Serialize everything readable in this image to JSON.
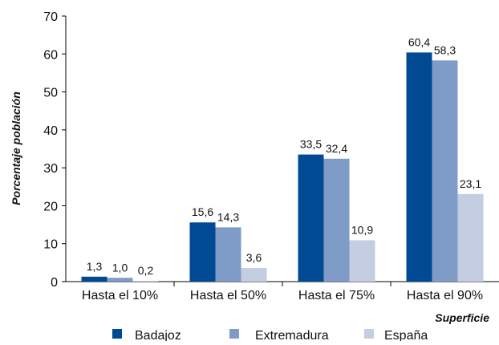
{
  "chart_data": {
    "type": "bar",
    "title": "",
    "xlabel": "Superficie",
    "ylabel": "Porcentaje población",
    "ylim": [
      0,
      70
    ],
    "yticks": [
      0,
      10,
      20,
      30,
      40,
      50,
      60,
      70
    ],
    "grid": false,
    "legend_position": "bottom",
    "categories": [
      "Hasta el 10%",
      "Hasta el 50%",
      "Hasta el 75%",
      "Hasta el 90%"
    ],
    "series": [
      {
        "name": "Badajoz",
        "color": "#004A93",
        "values": [
          1.3,
          15.6,
          33.5,
          60.4
        ],
        "labels": [
          "1,3",
          "15,6",
          "33,5",
          "60,4"
        ]
      },
      {
        "name": "Extremadura",
        "color": "#7F9BC8",
        "values": [
          1.0,
          14.3,
          32.4,
          58.3
        ],
        "labels": [
          "1,0",
          "14,3",
          "32,4",
          "58,3"
        ]
      },
      {
        "name": "España",
        "color": "#C5CDE2",
        "values": [
          0.2,
          3.6,
          10.9,
          23.1
        ],
        "labels": [
          "0,2",
          "3,6",
          "10,9",
          "23,1"
        ]
      }
    ]
  }
}
